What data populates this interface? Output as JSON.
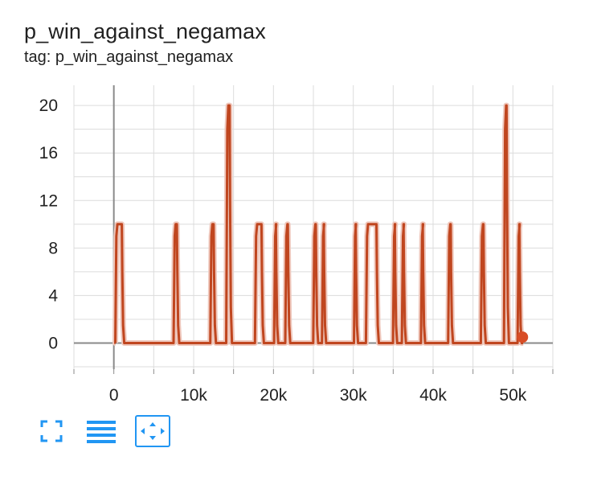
{
  "card": {
    "title": "p_win_against_negamax",
    "subtitle": "tag: p_win_against_negamax"
  },
  "toolbar": {
    "buttons": [
      {
        "icon": "fullscreen-icon"
      },
      {
        "icon": "list-lines-icon"
      },
      {
        "icon": "fit-domain-icon",
        "active": true
      }
    ],
    "color": "#2196f3"
  },
  "colors": {
    "series": "#c0461f",
    "series_halo": "#efc8bd",
    "grid": "#dcdcdc",
    "axis": "#8a8a8a"
  },
  "chart_data": {
    "type": "line",
    "title": "",
    "xlabel": "",
    "ylabel": "",
    "xlim": [
      -5000,
      55000
    ],
    "ylim": [
      -2.2,
      21.7
    ],
    "x_ticks": [
      0,
      10000,
      20000,
      30000,
      40000,
      50000
    ],
    "x_tick_labels": [
      "0",
      "10k",
      "20k",
      "30k",
      "40k",
      "50k"
    ],
    "y_ticks": [
      0,
      4,
      8,
      12,
      16,
      20
    ],
    "y_tick_labels": [
      "0",
      "4",
      "8",
      "12",
      "16",
      "20"
    ],
    "grid": true,
    "series": [
      {
        "name": "",
        "pulses": [
          {
            "start": 200,
            "end": 1000,
            "value": 10
          },
          {
            "start": 7500,
            "end": 7900,
            "value": 10
          },
          {
            "start": 12100,
            "end": 12500,
            "value": 10
          },
          {
            "start": 14100,
            "end": 14500,
            "value": 20
          },
          {
            "start": 17700,
            "end": 18500,
            "value": 10
          },
          {
            "start": 20100,
            "end": 20300,
            "value": 10
          },
          {
            "start": 21500,
            "end": 21800,
            "value": 10
          },
          {
            "start": 25000,
            "end": 25300,
            "value": 10
          },
          {
            "start": 26100,
            "end": 26300,
            "value": 10
          },
          {
            "start": 30100,
            "end": 30300,
            "value": 10
          },
          {
            "start": 31600,
            "end": 32900,
            "value": 10
          },
          {
            "start": 35000,
            "end": 35200,
            "value": 10
          },
          {
            "start": 36100,
            "end": 36300,
            "value": 10
          },
          {
            "start": 38500,
            "end": 38700,
            "value": 10
          },
          {
            "start": 41900,
            "end": 42200,
            "value": 10
          },
          {
            "start": 46000,
            "end": 46300,
            "value": 10
          },
          {
            "start": 48900,
            "end": 49200,
            "value": 20
          },
          {
            "start": 50600,
            "end": 50800,
            "value": 10
          }
        ],
        "x_start": 200,
        "x_end": 51300,
        "last_point": {
          "x": 51200,
          "y": 0.5
        }
      }
    ]
  }
}
